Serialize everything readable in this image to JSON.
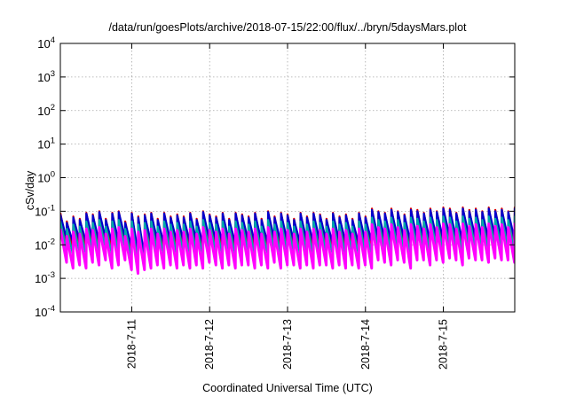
{
  "chart_data": {
    "type": "line",
    "title": "/data/run/goesPlots/archive/2018-07-15/22:00/flux/../bryn/5daysMars.plot",
    "xlabel": "Coordinated Universal Time (UTC)",
    "ylabel": "cSv/day",
    "yscale": "log",
    "ylim": [
      0.0001,
      10000
    ],
    "xlim": [
      "2018-07-10 02:00",
      "2018-07-15 22:00"
    ],
    "grid": true,
    "legend": "none",
    "x_ticks": [
      {
        "value": "2018-07-11 00:00",
        "label": "2018-7-11"
      },
      {
        "value": "2018-07-12 00:00",
        "label": "2018-7-12"
      },
      {
        "value": "2018-07-13 00:00",
        "label": "2018-7-13"
      },
      {
        "value": "2018-07-14 00:00",
        "label": "2018-7-14"
      },
      {
        "value": "2018-07-15 00:00",
        "label": "2018-7-15"
      }
    ],
    "y_ticks": [
      {
        "value": 0.0001,
        "base": "10",
        "exp": "-4"
      },
      {
        "value": 0.001,
        "base": "10",
        "exp": "-3"
      },
      {
        "value": 0.01,
        "base": "10",
        "exp": "-2"
      },
      {
        "value": 0.1,
        "base": "10",
        "exp": "-1"
      },
      {
        "value": 1,
        "base": "10",
        "exp": "0"
      },
      {
        "value": 10,
        "base": "10",
        "exp": "1"
      },
      {
        "value": 100,
        "base": "10",
        "exp": "2"
      },
      {
        "value": 1000,
        "base": "10",
        "exp": "3"
      },
      {
        "value": 10000,
        "base": "10",
        "exp": "4"
      }
    ],
    "cycle_hours": 2,
    "series": [
      {
        "color": "#dd0000",
        "peaks": [
          0.09,
          0.05,
          0.07,
          0.06,
          0.09,
          0.08,
          0.1,
          0.06,
          0.09,
          0.1,
          0.05,
          0.09,
          0.07,
          0.08,
          0.09,
          0.06,
          0.09,
          0.07,
          0.08,
          0.07,
          0.09,
          0.06,
          0.1,
          0.08,
          0.07,
          0.09,
          0.06,
          0.09,
          0.08,
          0.07,
          0.09,
          0.06,
          0.1,
          0.07,
          0.09,
          0.08,
          0.06,
          0.09,
          0.07,
          0.09,
          0.08,
          0.06,
          0.09,
          0.07,
          0.08,
          0.06,
          0.09,
          0.07,
          0.12,
          0.1,
          0.09,
          0.12,
          0.1,
          0.08,
          0.12,
          0.11,
          0.09,
          0.12,
          0.1,
          0.13,
          0.12,
          0.09,
          0.13,
          0.11,
          0.12,
          0.1,
          0.13,
          0.11,
          0.12,
          0.1,
          0.13
        ],
        "troughs": [
          0.01,
          0.008,
          0.009,
          0.008,
          0.01,
          0.009,
          0.011,
          0.008,
          0.009,
          0.011,
          0.006,
          0.004,
          0.003,
          0.008,
          0.009,
          0.007,
          0.009,
          0.008,
          0.009,
          0.008,
          0.009,
          0.007,
          0.01,
          0.009,
          0.008,
          0.009,
          0.007,
          0.009,
          0.009,
          0.008,
          0.009,
          0.007,
          0.01,
          0.008,
          0.009,
          0.009,
          0.007,
          0.009,
          0.008,
          0.009,
          0.009,
          0.007,
          0.009,
          0.008,
          0.009,
          0.007,
          0.009,
          0.008,
          0.011,
          0.01,
          0.009,
          0.011,
          0.01,
          0.008,
          0.011,
          0.011,
          0.009,
          0.011,
          0.01,
          0.012,
          0.011,
          0.009,
          0.012,
          0.011,
          0.011,
          0.01,
          0.012,
          0.011,
          0.011,
          0.01,
          0.012
        ]
      },
      {
        "color": "#0000cc",
        "peaks": [
          0.08,
          0.045,
          0.065,
          0.055,
          0.085,
          0.075,
          0.095,
          0.055,
          0.085,
          0.095,
          0.045,
          0.085,
          0.065,
          0.075,
          0.085,
          0.055,
          0.085,
          0.065,
          0.075,
          0.065,
          0.085,
          0.055,
          0.095,
          0.075,
          0.065,
          0.085,
          0.055,
          0.085,
          0.075,
          0.065,
          0.085,
          0.055,
          0.095,
          0.065,
          0.085,
          0.075,
          0.055,
          0.085,
          0.065,
          0.085,
          0.075,
          0.055,
          0.085,
          0.065,
          0.075,
          0.055,
          0.085,
          0.065,
          0.11,
          0.095,
          0.085,
          0.11,
          0.095,
          0.075,
          0.11,
          0.1,
          0.085,
          0.11,
          0.095,
          0.12,
          0.11,
          0.085,
          0.12,
          0.1,
          0.11,
          0.095,
          0.12,
          0.1,
          0.11,
          0.095,
          0.12
        ],
        "troughs": [
          0.015,
          0.012,
          0.013,
          0.012,
          0.015,
          0.013,
          0.016,
          0.012,
          0.013,
          0.016,
          0.009,
          0.006,
          0.0045,
          0.012,
          0.013,
          0.011,
          0.013,
          0.012,
          0.013,
          0.012,
          0.013,
          0.011,
          0.015,
          0.013,
          0.012,
          0.013,
          0.011,
          0.013,
          0.013,
          0.012,
          0.013,
          0.011,
          0.015,
          0.012,
          0.013,
          0.013,
          0.011,
          0.013,
          0.012,
          0.013,
          0.013,
          0.011,
          0.013,
          0.012,
          0.013,
          0.011,
          0.013,
          0.012,
          0.016,
          0.015,
          0.013,
          0.016,
          0.015,
          0.012,
          0.016,
          0.016,
          0.013,
          0.016,
          0.015,
          0.018,
          0.016,
          0.013,
          0.018,
          0.016,
          0.016,
          0.015,
          0.018,
          0.016,
          0.016,
          0.015,
          0.018
        ]
      },
      {
        "color": "#00aaaa",
        "peaks": [
          0.05,
          0.03,
          0.04,
          0.035,
          0.05,
          0.045,
          0.055,
          0.035,
          0.05,
          0.055,
          0.03,
          0.05,
          0.04,
          0.045,
          0.05,
          0.035,
          0.05,
          0.04,
          0.045,
          0.04,
          0.05,
          0.035,
          0.055,
          0.045,
          0.04,
          0.05,
          0.035,
          0.05,
          0.045,
          0.04,
          0.05,
          0.035,
          0.055,
          0.04,
          0.05,
          0.045,
          0.035,
          0.05,
          0.04,
          0.05,
          0.045,
          0.035,
          0.05,
          0.04,
          0.045,
          0.035,
          0.05,
          0.04,
          0.065,
          0.055,
          0.05,
          0.065,
          0.055,
          0.045,
          0.065,
          0.06,
          0.05,
          0.065,
          0.055,
          0.07,
          0.065,
          0.05,
          0.07,
          0.06,
          0.065,
          0.055,
          0.07,
          0.06,
          0.065,
          0.055,
          0.07
        ],
        "troughs": [
          0.007,
          0.005,
          0.006,
          0.005,
          0.007,
          0.006,
          0.008,
          0.005,
          0.006,
          0.008,
          0.004,
          0.0028,
          0.002,
          0.005,
          0.006,
          0.005,
          0.006,
          0.005,
          0.006,
          0.005,
          0.006,
          0.005,
          0.007,
          0.006,
          0.005,
          0.006,
          0.005,
          0.006,
          0.006,
          0.005,
          0.006,
          0.005,
          0.007,
          0.005,
          0.006,
          0.006,
          0.005,
          0.006,
          0.005,
          0.006,
          0.006,
          0.005,
          0.006,
          0.005,
          0.006,
          0.005,
          0.006,
          0.005,
          0.008,
          0.007,
          0.006,
          0.008,
          0.007,
          0.005,
          0.008,
          0.008,
          0.006,
          0.008,
          0.007,
          0.009,
          0.008,
          0.006,
          0.009,
          0.008,
          0.008,
          0.007,
          0.009,
          0.008,
          0.008,
          0.007,
          0.009
        ]
      },
      {
        "color": "#ff00ff",
        "peaks": [
          0.03,
          0.018,
          0.024,
          0.021,
          0.03,
          0.027,
          0.033,
          0.021,
          0.03,
          0.033,
          0.018,
          0.03,
          0.024,
          0.027,
          0.03,
          0.021,
          0.03,
          0.024,
          0.027,
          0.024,
          0.03,
          0.021,
          0.033,
          0.027,
          0.024,
          0.03,
          0.021,
          0.03,
          0.027,
          0.024,
          0.03,
          0.021,
          0.033,
          0.024,
          0.03,
          0.027,
          0.021,
          0.03,
          0.024,
          0.03,
          0.027,
          0.021,
          0.03,
          0.024,
          0.027,
          0.021,
          0.03,
          0.024,
          0.04,
          0.033,
          0.03,
          0.04,
          0.033,
          0.027,
          0.04,
          0.036,
          0.03,
          0.04,
          0.033,
          0.042,
          0.04,
          0.03,
          0.042,
          0.036,
          0.04,
          0.033,
          0.042,
          0.036,
          0.04,
          0.033,
          0.042
        ],
        "troughs": [
          0.003,
          0.002,
          0.0025,
          0.002,
          0.003,
          0.0025,
          0.0035,
          0.002,
          0.0025,
          0.0035,
          0.0018,
          0.0014,
          0.0018,
          0.002,
          0.0025,
          0.002,
          0.0025,
          0.002,
          0.0025,
          0.002,
          0.0025,
          0.002,
          0.003,
          0.0025,
          0.002,
          0.0025,
          0.002,
          0.0025,
          0.0025,
          0.002,
          0.0025,
          0.002,
          0.003,
          0.002,
          0.0025,
          0.0025,
          0.002,
          0.0025,
          0.002,
          0.0025,
          0.0025,
          0.002,
          0.0025,
          0.002,
          0.0025,
          0.002,
          0.0025,
          0.002,
          0.0035,
          0.003,
          0.0025,
          0.0035,
          0.003,
          0.002,
          0.0035,
          0.0035,
          0.0025,
          0.0035,
          0.003,
          0.004,
          0.0035,
          0.0025,
          0.004,
          0.0035,
          0.0035,
          0.003,
          0.004,
          0.0035,
          0.0035,
          0.003,
          0.004
        ]
      }
    ]
  }
}
